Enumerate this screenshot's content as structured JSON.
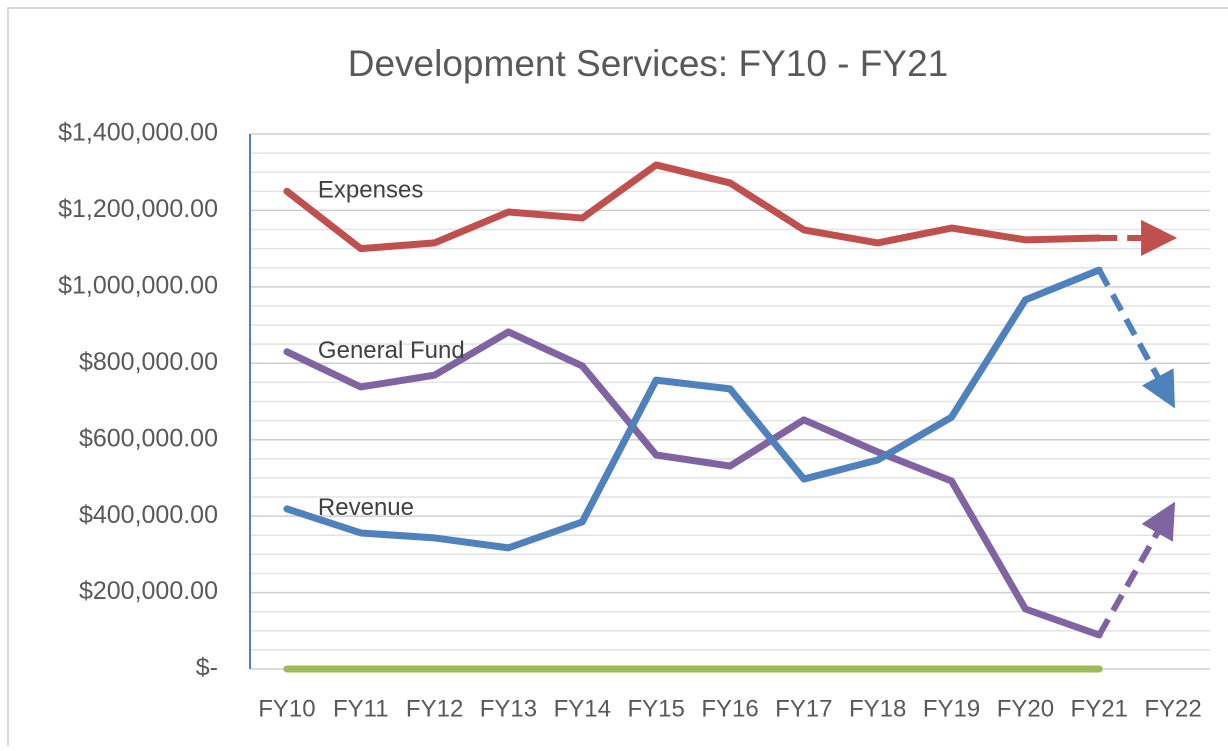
{
  "chart_data": {
    "type": "line",
    "title": "Development Services: FY10 - FY21",
    "categories": [
      "FY10",
      "FY11",
      "FY12",
      "FY13",
      "FY14",
      "FY15",
      "FY16",
      "FY17",
      "FY18",
      "FY19",
      "FY20",
      "FY21",
      "FY22"
    ],
    "ylim": [
      0,
      1400000
    ],
    "yticks": [
      {
        "value": 0,
        "label": "$-"
      },
      {
        "value": 200000,
        "label": "$200,000.00"
      },
      {
        "value": 400000,
        "label": "$400,000.00"
      },
      {
        "value": 600000,
        "label": "$600,000.00"
      },
      {
        "value": 800000,
        "label": "$800,000.00"
      },
      {
        "value": 1000000,
        "label": "$1,000,000.00"
      },
      {
        "value": 1200000,
        "label": "$1,200,000.00"
      },
      {
        "value": 1400000,
        "label": "$1,400,000.00"
      }
    ],
    "grid": true,
    "series": [
      {
        "name": "Expenses",
        "color": "#c0504d",
        "values": [
          1250000,
          1100000,
          1115000,
          1196000,
          1180000,
          1319000,
          1272000,
          1149000,
          1115000,
          1154000,
          1123000,
          1128000,
          null
        ],
        "projection": 1128000
      },
      {
        "name": "General Fund",
        "color": "#8064a2",
        "values": [
          830000,
          738000,
          769000,
          882000,
          793000,
          560000,
          531000,
          652000,
          568000,
          492000,
          157000,
          89000,
          null
        ],
        "projection": 429000
      },
      {
        "name": "Revenue",
        "color": "#4f81bd",
        "values": [
          419000,
          356000,
          343000,
          317000,
          385000,
          756000,
          733000,
          497000,
          547000,
          659000,
          966000,
          1044000,
          null
        ],
        "projection": 691000
      },
      {
        "color": "#9bbb59",
        "values": [
          0,
          0,
          0,
          0,
          0,
          0,
          0,
          0,
          0,
          0,
          0,
          0,
          null
        ]
      }
    ]
  }
}
